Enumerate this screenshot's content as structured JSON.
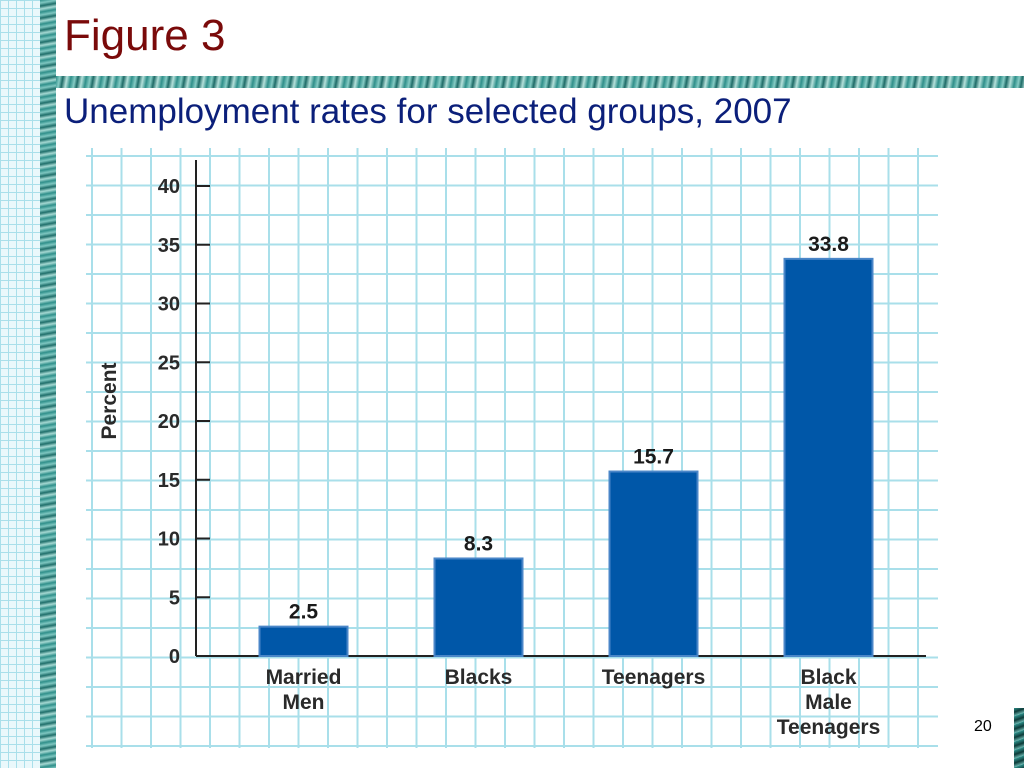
{
  "slide": {
    "title": "Figure 3",
    "subtitle": "Unemployment rates for selected groups, 2007",
    "page_number": "20"
  },
  "colors": {
    "title": "#7a0a0a",
    "subtitle": "#0b1f7a",
    "bar": "#0057a8",
    "grid": "#a9dfea"
  },
  "chart_data": {
    "type": "bar",
    "title": "",
    "xlabel": "",
    "ylabel": "Percent",
    "categories": [
      [
        "Married",
        "Men"
      ],
      [
        "Blacks"
      ],
      [
        "Teenagers"
      ],
      [
        "Black",
        "Male",
        "Teenagers"
      ]
    ],
    "values": [
      2.5,
      8.3,
      15.7,
      33.8
    ],
    "value_labels": [
      "2.5",
      "8.3",
      "15.7",
      "33.8"
    ],
    "ylim": [
      0,
      40
    ],
    "yticks": [
      0,
      5,
      10,
      15,
      20,
      25,
      30,
      35,
      40
    ],
    "grid": true,
    "legend": "none"
  }
}
